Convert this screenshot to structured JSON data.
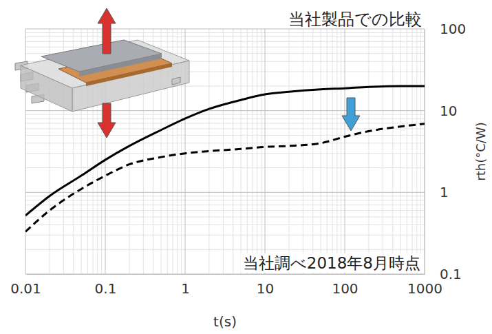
{
  "chart_data": {
    "type": "line",
    "title": "当社製品での比較",
    "annotations": [
      "当社調べ2018年8月時点"
    ],
    "x_label": "t(s)",
    "y_label": "rth(°C/W)",
    "log": true,
    "grid": true,
    "x": [
      0.01,
      0.02,
      0.05,
      0.1,
      0.2,
      0.5,
      1,
      2,
      5,
      10,
      20,
      50,
      100,
      200,
      500,
      1000
    ],
    "series": [
      {
        "color": "#000000",
        "line_style": "solid",
        "values": [
          0.52,
          0.9,
          1.6,
          2.5,
          3.7,
          5.8,
          8.0,
          10.5,
          13.5,
          15.8,
          17,
          18.2,
          18.8,
          19.5,
          20,
          20
        ]
      },
      {
        "color": "#000000",
        "line_style": "dashed",
        "values": [
          0.33,
          0.6,
          1.1,
          1.6,
          2.2,
          2.7,
          3.0,
          3.2,
          3.4,
          3.6,
          3.7,
          4.0,
          4.8,
          5.6,
          6.4,
          6.9
        ]
      }
    ],
    "xlim": [
      0.01,
      1000
    ],
    "xticks": [
      0.01,
      0.1,
      1,
      10,
      100,
      1000
    ],
    "ylim": [
      0.1,
      100
    ],
    "yticks": [
      0.1,
      1,
      10,
      100
    ]
  }
}
